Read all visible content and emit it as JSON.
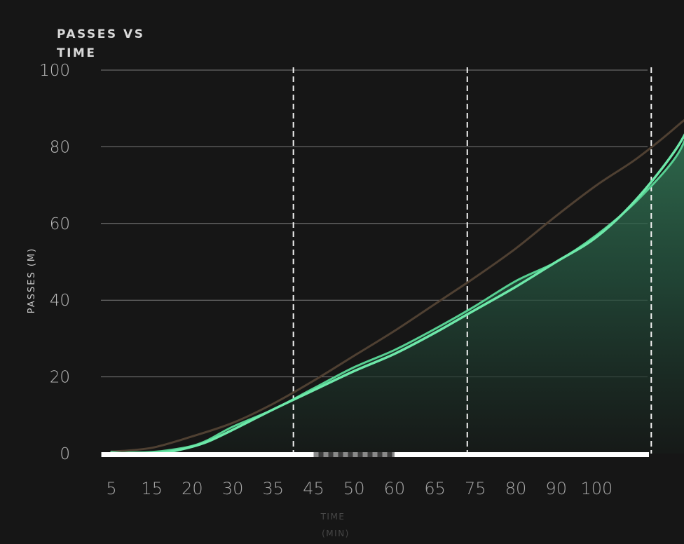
{
  "chart_data": {
    "type": "area",
    "title_lines": [
      "PASSES VS",
      "TIME"
    ],
    "xlabel_lines": [
      "TIME",
      "(MIN)"
    ],
    "ylabel": "PASSES (M)",
    "ylim": [
      0,
      100
    ],
    "y_ticks": [
      "0",
      "20",
      "40",
      "60",
      "80",
      "100"
    ],
    "y_tick_values": [
      0,
      20,
      40,
      60,
      80,
      100
    ],
    "x_ticks": [
      "5",
      "15",
      "20",
      "30",
      "35",
      "45",
      "50",
      "60",
      "65",
      "75",
      "80",
      "90",
      "100"
    ],
    "grid": "horizontal",
    "reference_lines_x_tick_index": [
      4.5,
      8.8,
      13.35
    ],
    "series": [
      {
        "color": "#56cf91",
        "fill": true,
        "points": [
          [
            0,
            0.5
          ],
          [
            0.5,
            0.3
          ],
          [
            1,
            0.4
          ],
          [
            1.5,
            1.0
          ],
          [
            2,
            2
          ],
          [
            2.4,
            3.6
          ],
          [
            3,
            7
          ],
          [
            4,
            11.5
          ],
          [
            5,
            17
          ],
          [
            6,
            22.5
          ],
          [
            7,
            27
          ],
          [
            8,
            32.5
          ],
          [
            9,
            38.5
          ],
          [
            10,
            45
          ],
          [
            11,
            50
          ],
          [
            12,
            57
          ],
          [
            13,
            66
          ],
          [
            14,
            78
          ],
          [
            14.4,
            89
          ],
          [
            14.7,
            100
          ]
        ]
      },
      {
        "color": "#4f4032",
        "fill": false,
        "points": [
          [
            0,
            0.5
          ],
          [
            1,
            1.5
          ],
          [
            2,
            4.5
          ],
          [
            3,
            8
          ],
          [
            4,
            13
          ],
          [
            5,
            19
          ],
          [
            6,
            25.5
          ],
          [
            7,
            32
          ],
          [
            8,
            39
          ],
          [
            9,
            46
          ],
          [
            10,
            53.5
          ],
          [
            11,
            62
          ],
          [
            12,
            70
          ],
          [
            13,
            77
          ],
          [
            14,
            85.5
          ],
          [
            14.4,
            90
          ],
          [
            14.7,
            100
          ]
        ]
      },
      {
        "color": "#6de8a9",
        "fill": false,
        "points": [
          [
            0,
            0.3
          ],
          [
            0.5,
            0
          ],
          [
            1,
            0.1
          ],
          [
            1.5,
            0.6
          ],
          [
            2,
            1.8
          ],
          [
            2.4,
            3.2
          ],
          [
            3,
            6.2
          ],
          [
            4,
            11.5
          ],
          [
            5,
            16.5
          ],
          [
            6,
            21.5
          ],
          [
            7,
            26
          ],
          [
            8,
            31.5
          ],
          [
            9,
            37.5
          ],
          [
            10,
            43.5
          ],
          [
            11,
            50
          ],
          [
            12,
            56.5
          ],
          [
            13,
            66.5
          ],
          [
            14,
            80
          ],
          [
            14.4,
            89
          ],
          [
            14.7,
            100
          ]
        ]
      }
    ],
    "timeline_segments": [
      {
        "from_tick_index": -0.25,
        "to_tick_index": 5.0,
        "style": "solid",
        "color": "#ffffff"
      },
      {
        "from_tick_index": 5.0,
        "to_tick_index": 7.0,
        "style": "checkered",
        "color": "#8a8a8a"
      },
      {
        "from_tick_index": 7.0,
        "to_tick_index": 13.5,
        "style": "solid",
        "color": "#ffffff"
      },
      {
        "from_tick_index": 13.5,
        "to_tick_index": 14.7,
        "style": "hatched",
        "color": "#b21e1e"
      }
    ]
  }
}
